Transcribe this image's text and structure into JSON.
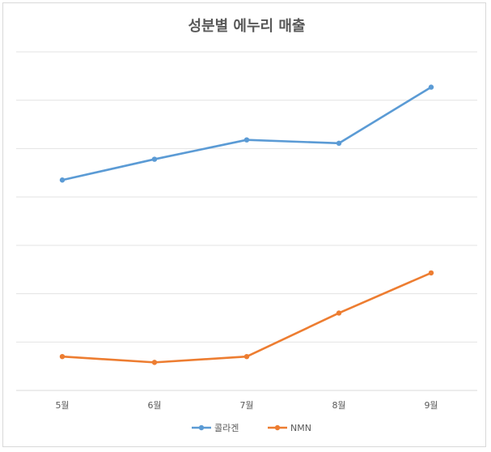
{
  "chart_data": {
    "type": "line",
    "title": "성분별 에누리 매출",
    "categories": [
      "5월",
      "6월",
      "7월",
      "8월",
      "9월"
    ],
    "series": [
      {
        "name": "콜라겐",
        "values": [
          4.35,
          4.78,
          5.18,
          5.11,
          6.27
        ],
        "color": "#5b9bd5"
      },
      {
        "name": "NMN",
        "values": [
          0.7,
          0.58,
          0.7,
          1.6,
          2.43
        ],
        "color": "#ed7d31"
      }
    ],
    "ylim": [
      0,
      7
    ],
    "y_gridlines": 7,
    "y_tick_labels_shown": false,
    "grid": true,
    "legend_position": "bottom",
    "xlabel": "",
    "ylabel": ""
  }
}
